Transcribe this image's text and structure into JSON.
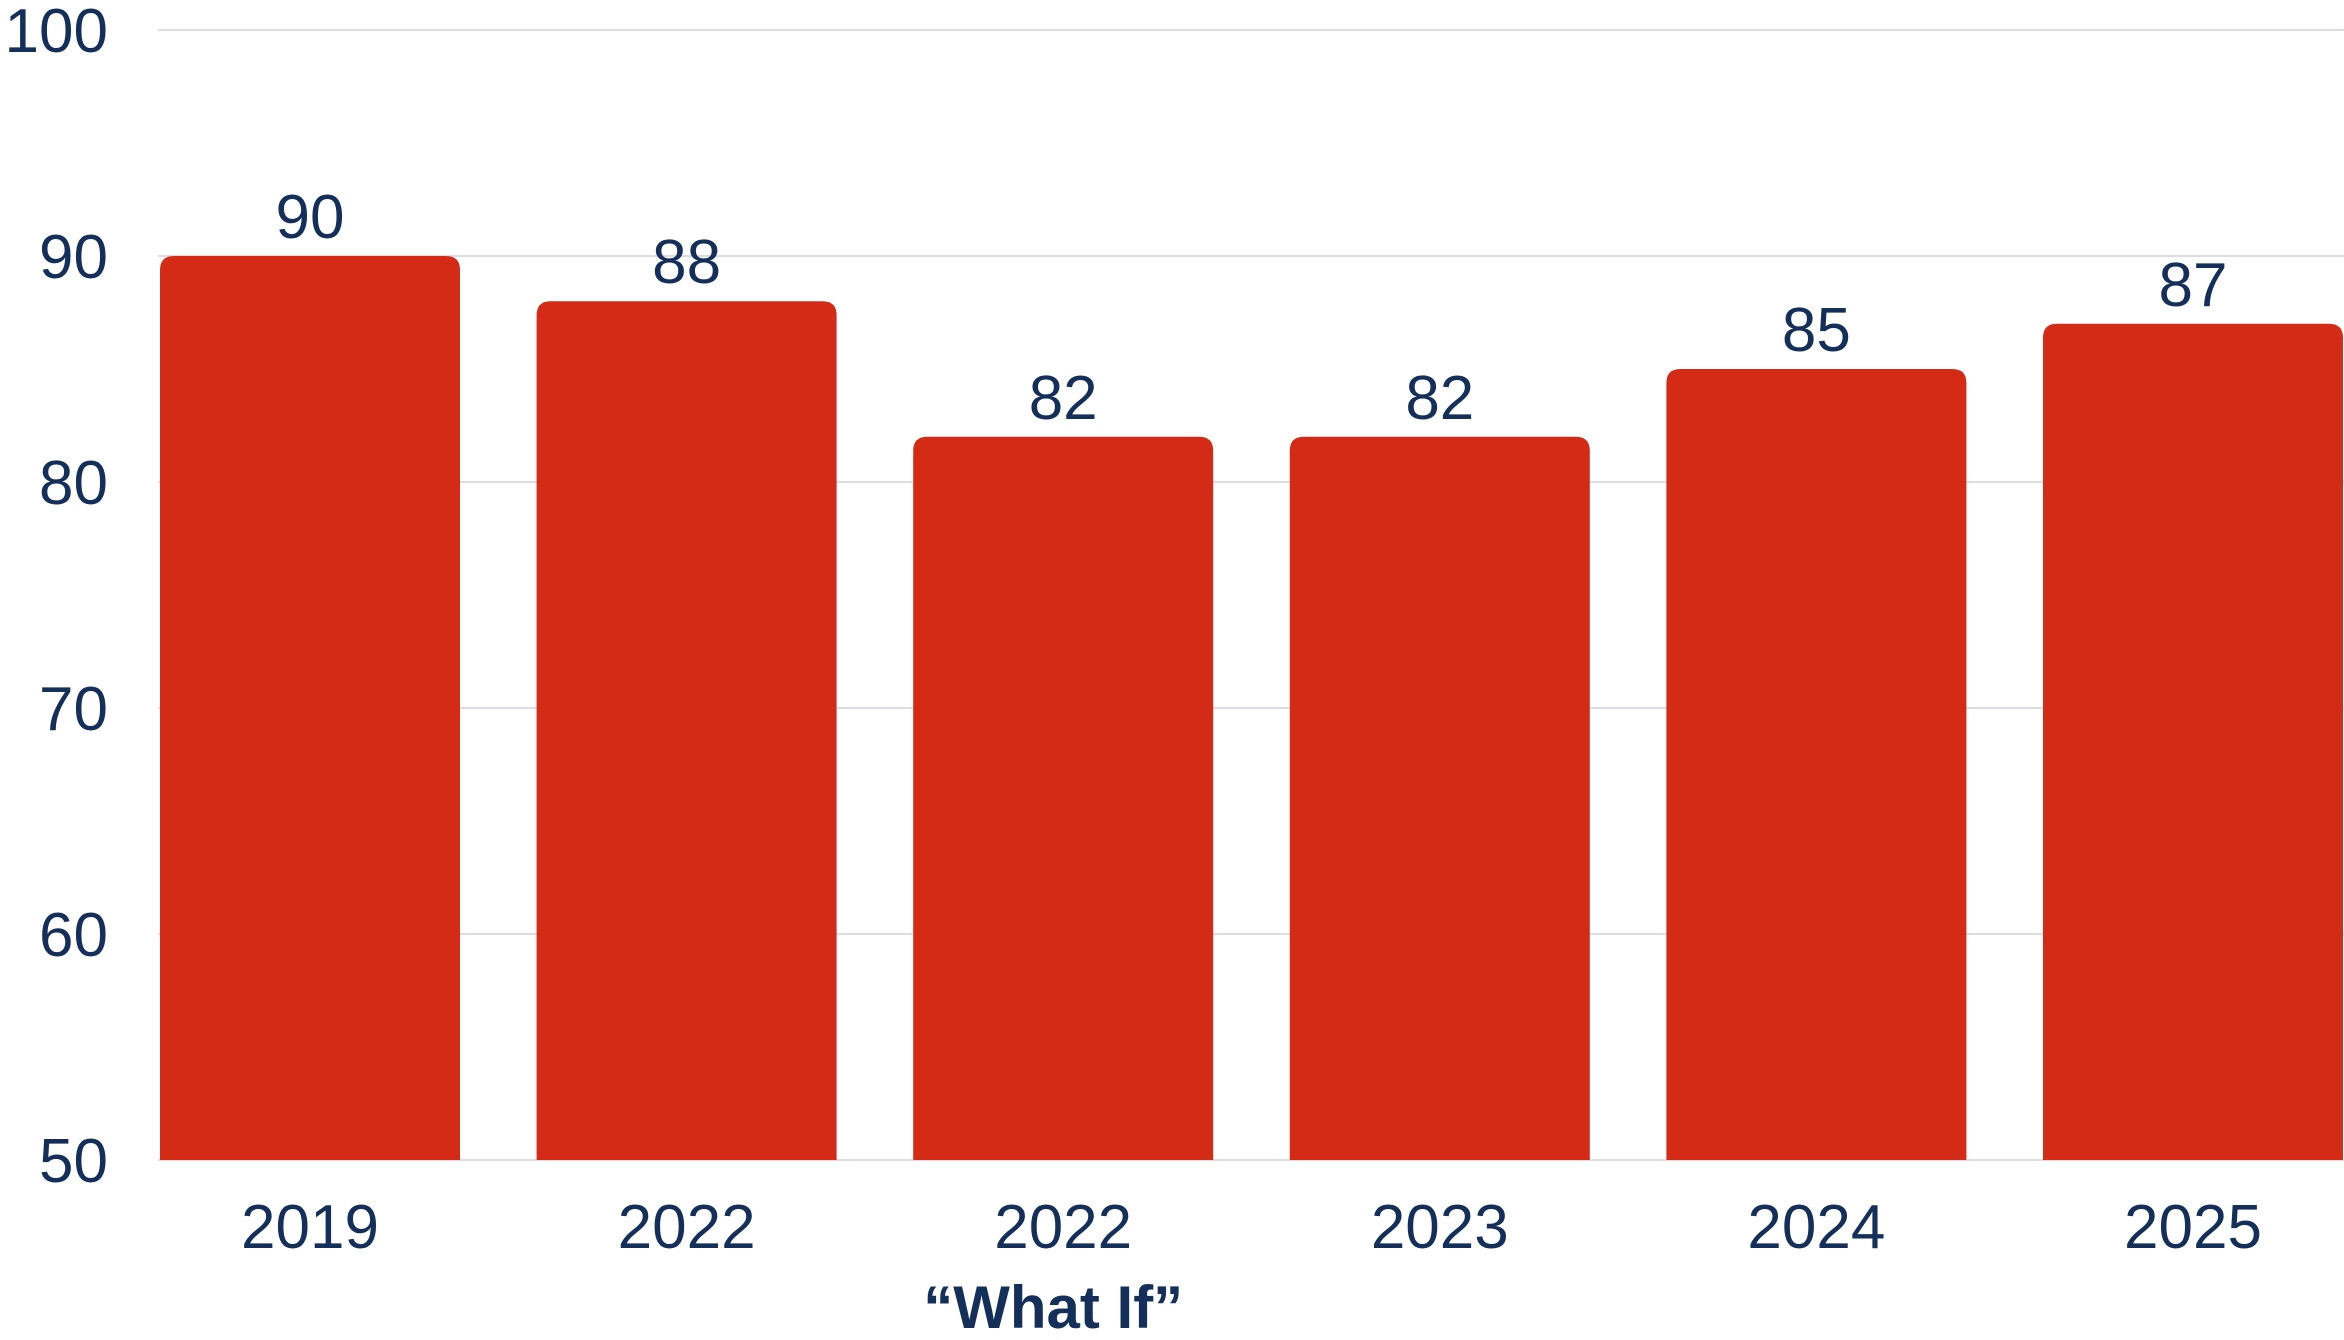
{
  "colors": {
    "bar": "#d42b16",
    "text": "#14305a",
    "grid": "#dcdde2"
  },
  "chart_data": {
    "type": "bar",
    "title": "",
    "xlabel": "",
    "ylabel": "",
    "categories": [
      "2019",
      "2022",
      "2022",
      "2023",
      "2024",
      "2025"
    ],
    "series": [
      {
        "values": [
          90,
          88,
          82,
          82,
          85,
          87
        ]
      }
    ],
    "data_labels": [
      "90",
      "88",
      "82",
      "82",
      "85",
      "87"
    ],
    "ylim": [
      50,
      100
    ],
    "yticks": [
      50,
      60,
      70,
      80,
      90,
      100
    ],
    "ytick_labels": [
      "50",
      "60",
      "70",
      "80",
      "90",
      "100"
    ],
    "grid": true,
    "legend": "none",
    "annotations": [
      {
        "text": "“What If”",
        "category_index": 2
      }
    ]
  }
}
